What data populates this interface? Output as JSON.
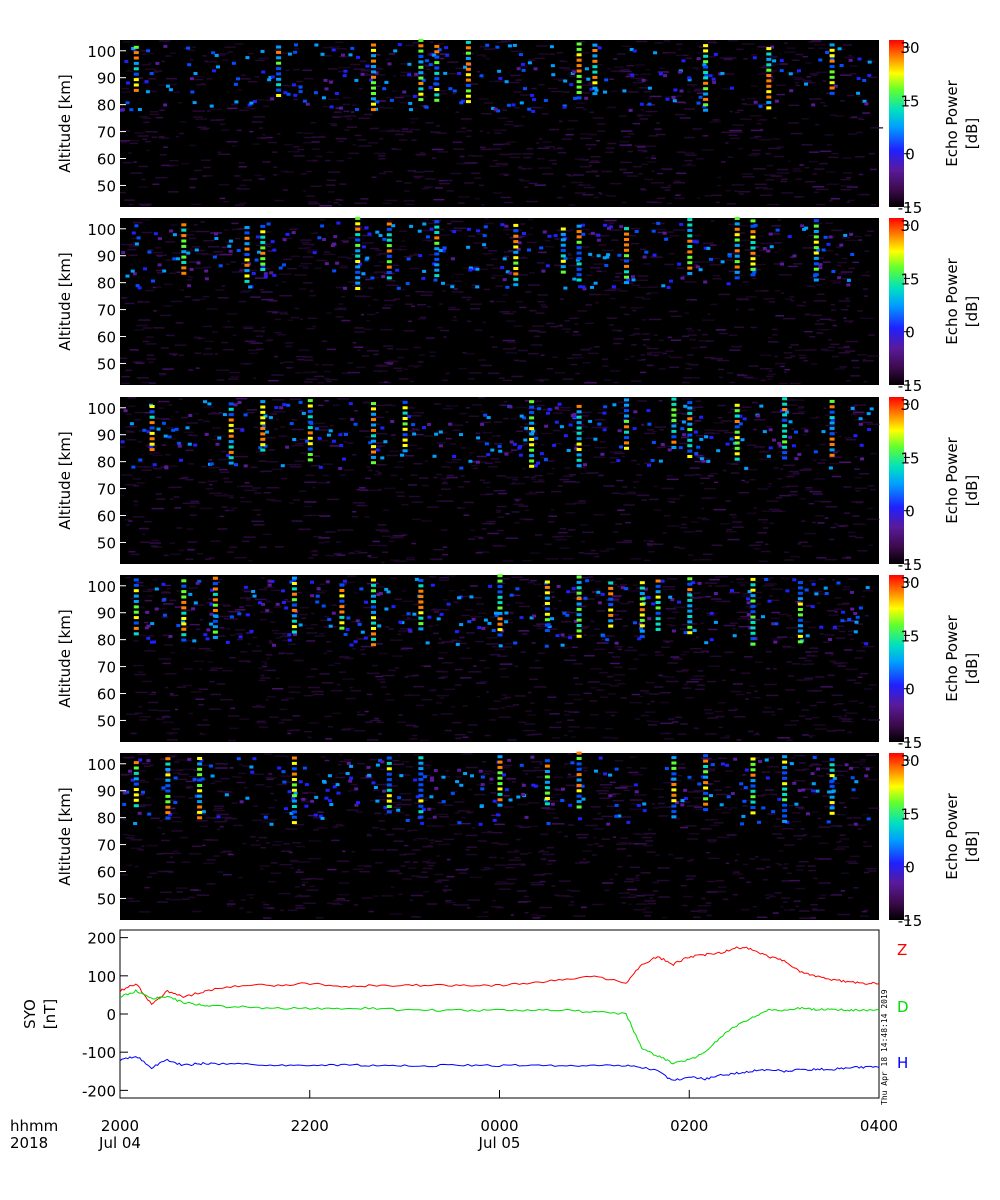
{
  "chart_data": [
    {
      "type": "heatmap",
      "ylabel": "Altitude [km]",
      "yticks": [
        "100",
        "90",
        "80",
        "70",
        "60",
        "50"
      ],
      "ylim": [
        42,
        104
      ],
      "colorbar": {
        "label_line1": "Echo Power",
        "label_line2": "[dB]",
        "ticks": [
          "30",
          "15",
          "0",
          "-15"
        ],
        "range": [
          -15,
          32
        ]
      },
      "strong_echo_columns_hhmm": [
        "2010",
        "2140",
        "2240",
        "2310",
        "2320",
        "2340",
        "0050",
        "0100",
        "0210",
        "0250",
        "0330"
      ]
    },
    {
      "type": "heatmap",
      "ylabel": "Altitude [km]",
      "yticks": [
        "100",
        "90",
        "80",
        "70",
        "60",
        "50"
      ],
      "ylim": [
        42,
        104
      ],
      "colorbar": {
        "label_line1": "Echo Power",
        "label_line2": "[dB]",
        "ticks": [
          "30",
          "15",
          "0",
          "-15"
        ],
        "range": [
          -15,
          32
        ]
      },
      "strong_echo_columns_hhmm": [
        "2040",
        "2120",
        "2130",
        "2230",
        "2250",
        "2320",
        "0010",
        "0040",
        "0050",
        "0120",
        "0200",
        "0230",
        "0240",
        "0320"
      ]
    },
    {
      "type": "heatmap",
      "ylabel": "Altitude [km]",
      "yticks": [
        "100",
        "90",
        "80",
        "70",
        "60",
        "50"
      ],
      "ylim": [
        42,
        104
      ],
      "colorbar": {
        "label_line1": "Echo Power",
        "label_line2": "[dB]",
        "ticks": [
          "30",
          "15",
          "0",
          "-15"
        ],
        "range": [
          -15,
          32
        ]
      },
      "strong_echo_columns_hhmm": [
        "2020",
        "2110",
        "2130",
        "2200",
        "2240",
        "2300",
        "0020",
        "0050",
        "0120",
        "0150",
        "0200",
        "0230",
        "0300",
        "0330"
      ]
    },
    {
      "type": "heatmap",
      "ylabel": "Altitude [km]",
      "yticks": [
        "100",
        "90",
        "80",
        "70",
        "60",
        "50"
      ],
      "ylim": [
        42,
        104
      ],
      "colorbar": {
        "label_line1": "Echo Power",
        "label_line2": "[dB]",
        "ticks": [
          "30",
          "15",
          "0",
          "-15"
        ],
        "range": [
          -15,
          32
        ]
      },
      "strong_echo_columns_hhmm": [
        "2010",
        "2040",
        "2100",
        "2150",
        "2220",
        "2240",
        "2310",
        "0000",
        "0030",
        "0050",
        "0110",
        "0130",
        "0140",
        "0200",
        "0240",
        "0310"
      ]
    },
    {
      "type": "heatmap",
      "ylabel": "Altitude [km]",
      "yticks": [
        "100",
        "90",
        "80",
        "70",
        "60",
        "50"
      ],
      "ylim": [
        42,
        104
      ],
      "colorbar": {
        "label_line1": "Echo Power",
        "label_line2": "[dB]",
        "ticks": [
          "30",
          "15",
          "0",
          "-15"
        ],
        "range": [
          -15,
          32
        ]
      },
      "strong_echo_columns_hhmm": [
        "2010",
        "2030",
        "2050",
        "2150",
        "2250",
        "2310",
        "0000",
        "0030",
        "0050",
        "0150",
        "0210",
        "0240",
        "0300",
        "0330"
      ]
    },
    {
      "type": "line",
      "ylabel_line1": "SYO",
      "ylabel_line2": "[nT]",
      "yticks": [
        "200",
        "100",
        "0",
        "-100",
        "-200"
      ],
      "ylim": [
        -220,
        220
      ],
      "x_hhmm": [
        "2000",
        "2010",
        "2020",
        "2030",
        "2040",
        "2050",
        "2100",
        "2120",
        "2140",
        "2200",
        "2220",
        "2240",
        "2300",
        "2320",
        "2340",
        "0000",
        "0020",
        "0040",
        "0100",
        "0120",
        "0130",
        "0140",
        "0150",
        "0200",
        "0210",
        "0220",
        "0230",
        "0240",
        "0250",
        "0300",
        "0310",
        "0320",
        "0330",
        "0340",
        "0350",
        "0400"
      ],
      "series": [
        {
          "name": "Z",
          "color": "#ff0000",
          "values": [
            60,
            80,
            25,
            60,
            45,
            55,
            65,
            75,
            75,
            80,
            70,
            75,
            75,
            75,
            75,
            75,
            80,
            90,
            100,
            80,
            130,
            150,
            130,
            150,
            155,
            160,
            175,
            170,
            150,
            140,
            110,
            100,
            90,
            85,
            80,
            80
          ]
        },
        {
          "name": "D",
          "color": "#00dd00",
          "values": [
            45,
            60,
            40,
            45,
            30,
            25,
            20,
            18,
            15,
            15,
            15,
            15,
            10,
            10,
            10,
            10,
            10,
            10,
            5,
            0,
            -90,
            -110,
            -130,
            -120,
            -100,
            -60,
            -30,
            -10,
            10,
            10,
            15,
            12,
            12,
            10,
            10,
            10
          ]
        },
        {
          "name": "H",
          "color": "#0000ff",
          "values": [
            -120,
            -110,
            -140,
            -120,
            -135,
            -130,
            -130,
            -132,
            -133,
            -135,
            -133,
            -135,
            -135,
            -135,
            -134,
            -135,
            -135,
            -135,
            -135,
            -135,
            -140,
            -150,
            -175,
            -165,
            -170,
            -160,
            -155,
            -150,
            -145,
            -150,
            -145,
            -145,
            -145,
            -140,
            -140,
            -140
          ]
        }
      ]
    }
  ],
  "xaxis": {
    "row1_label": "hhmm",
    "row2_label": "2018",
    "ticks": [
      {
        "time": "2000",
        "date": "Jul 04"
      },
      {
        "time": "2200",
        "date": ""
      },
      {
        "time": "0000",
        "date": "Jul 05"
      },
      {
        "time": "0200",
        "date": ""
      },
      {
        "time": "0400",
        "date": ""
      }
    ]
  },
  "timestamp": "Thu Apr 18 14:48:14 2019"
}
